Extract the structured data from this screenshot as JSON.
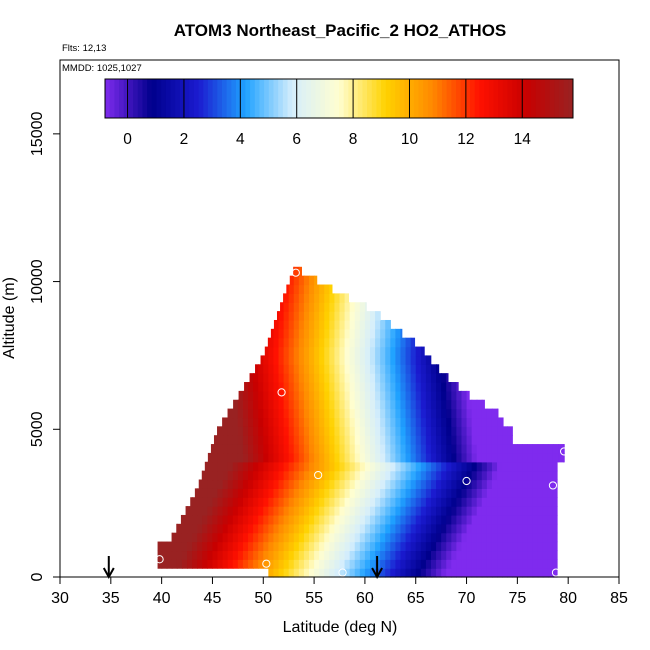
{
  "chart_data": {
    "type": "heatmap",
    "title": "ATOM3 Northeast_Pacific_2 HO2_ATHOS",
    "flights_label": "Flts: 12,13",
    "dates_label": "MMDD: 1025,1027",
    "xlabel": "Latitude (deg N)",
    "ylabel": "Altitude (m)",
    "xlim": [
      30,
      85
    ],
    "ylim": [
      0,
      17500
    ],
    "x_ticks": [
      "30",
      "35",
      "40",
      "45",
      "50",
      "55",
      "60",
      "65",
      "70",
      "75",
      "80",
      "85"
    ],
    "y_ticks": [
      "0",
      "5000",
      "10000",
      "15000"
    ],
    "colorbar": {
      "range": [
        -0.8,
        15.8
      ],
      "ticks": [
        "0",
        "2",
        "4",
        "6",
        "8",
        "10",
        "12",
        "14"
      ],
      "colors": [
        "#7f2bee",
        "#00008c",
        "#1b1bd0",
        "#1fa2ff",
        "#d5eefc",
        "#fffed0",
        "#ffd200",
        "#ff8800",
        "#ff1100",
        "#c80000",
        "#992222"
      ]
    },
    "field_description_points": [
      {
        "lat": 39.8,
        "alt": 600,
        "value": 14.5
      },
      {
        "lat": 46,
        "alt": 600,
        "value": 11
      },
      {
        "lat": 52,
        "alt": 600,
        "value": 8.5
      },
      {
        "lat": 55,
        "alt": 600,
        "value": 6
      },
      {
        "lat": 60,
        "alt": 600,
        "value": 5
      },
      {
        "lat": 65,
        "alt": 600,
        "value": 3.2
      },
      {
        "lat": 70,
        "alt": 600,
        "value": 1.5
      },
      {
        "lat": 76,
        "alt": 600,
        "value": 0.8
      },
      {
        "lat": 79,
        "alt": 600,
        "value": -0.3
      },
      {
        "lat": 45,
        "alt": 4200,
        "value": 14.8
      },
      {
        "lat": 52,
        "alt": 4200,
        "value": 12
      },
      {
        "lat": 56,
        "alt": 4200,
        "value": 8
      },
      {
        "lat": 60,
        "alt": 4200,
        "value": 6
      },
      {
        "lat": 70,
        "alt": 4200,
        "value": 2
      },
      {
        "lat": 50,
        "alt": 8000,
        "value": 13
      },
      {
        "lat": 55,
        "alt": 8000,
        "value": 11
      },
      {
        "lat": 60,
        "alt": 7000,
        "value": 8
      },
      {
        "lat": 53,
        "alt": 10000,
        "value": 11.5
      }
    ],
    "observation_markers": [
      {
        "lat": 39.8,
        "alt": 600
      },
      {
        "lat": 50.3,
        "alt": 450
      },
      {
        "lat": 57.8,
        "alt": 150
      },
      {
        "lat": 78.8,
        "alt": 150
      },
      {
        "lat": 55.4,
        "alt": 3450
      },
      {
        "lat": 70.0,
        "alt": 3250
      },
      {
        "lat": 78.5,
        "alt": 3100
      },
      {
        "lat": 79.6,
        "alt": 4250
      },
      {
        "lat": 51.8,
        "alt": 6250
      },
      {
        "lat": 53.2,
        "alt": 10300
      }
    ],
    "arrows": [
      {
        "lat": 34.8
      },
      {
        "lat": 61.2
      }
    ]
  }
}
